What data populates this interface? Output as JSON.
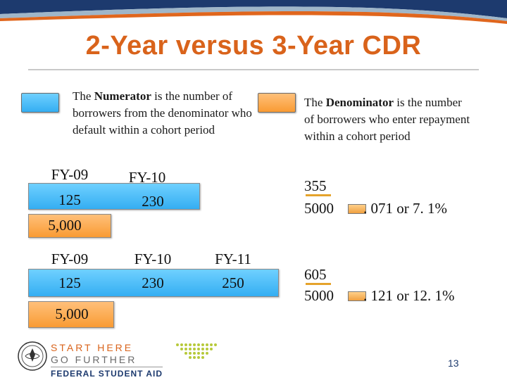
{
  "title": "2-Year versus 3-Year CDR",
  "numerator": {
    "term": "Numerator",
    "before": "The ",
    "after": " is the number of borrowers from the denominator who default within a cohort period"
  },
  "denominator": {
    "term": "Denominator",
    "before": "The ",
    "after": " is the number of borrowers who enter repayment within a cohort period"
  },
  "two_year": {
    "fy09_label": "FY-09",
    "fy09_value": "125",
    "fy10_label": "FY-10",
    "fy10_value": "230",
    "denominator_value": "5,000",
    "frac_top": "355",
    "frac_bottom": "5000",
    "result": ". 071 or 7. 1%"
  },
  "three_year": {
    "fy09_label": "FY-09",
    "fy09_value": "125",
    "fy10_label": "FY-10",
    "fy10_value": "230",
    "fy11_label": "FY-11",
    "fy11_value": "250",
    "denominator_value": "5,000",
    "frac_top": "605",
    "frac_bottom": "5000",
    "result": ". 121 or 12. 1%"
  },
  "footer": {
    "logo_line1": "START HERE",
    "logo_line2": "GO FURTHER",
    "logo_line3": "FEDERAL STUDENT AID",
    "page_number": "13"
  },
  "colors": {
    "accent_orange": "#d9631b",
    "bar_blue": "#34aef2",
    "bar_orange": "#f99b33",
    "navy": "#1d3a6e"
  }
}
